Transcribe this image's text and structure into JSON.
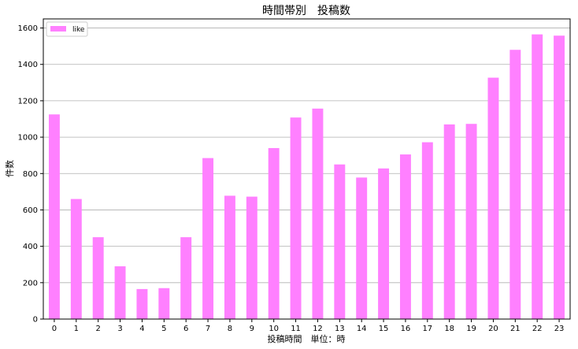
{
  "chart_data": {
    "type": "bar",
    "title": "時間帯別　投稿数",
    "xlabel": "投稿時間　単位：時",
    "ylabel": "件数",
    "categories": [
      "0",
      "1",
      "2",
      "3",
      "4",
      "5",
      "6",
      "7",
      "8",
      "9",
      "10",
      "11",
      "12",
      "13",
      "14",
      "15",
      "16",
      "17",
      "18",
      "19",
      "20",
      "21",
      "22",
      "23"
    ],
    "series": [
      {
        "name": "like",
        "color": "#ff80ff",
        "values": [
          1125,
          660,
          450,
          290,
          165,
          170,
          450,
          885,
          678,
          673,
          940,
          1108,
          1157,
          850,
          778,
          828,
          905,
          972,
          1070,
          1073,
          1327,
          1480,
          1565,
          1558
        ]
      }
    ],
    "ylim": [
      0,
      1650
    ],
    "yticks": [
      0,
      200,
      400,
      600,
      800,
      1000,
      1200,
      1400,
      1600
    ],
    "grid": "horizontal",
    "legend_position": "top-left"
  }
}
